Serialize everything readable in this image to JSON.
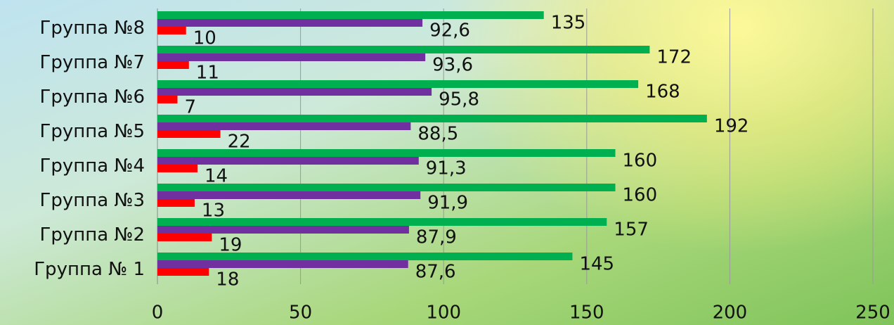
{
  "chart_data": {
    "type": "hbar",
    "categories": [
      "Группа № 1",
      "Группа №2",
      "Группа №3",
      "Группа №4",
      "Группа №5",
      "Группа №6",
      "Группа №7",
      "Группа №8"
    ],
    "series": [
      {
        "color": "#ff0000",
        "values": [
          18,
          19,
          13,
          14,
          22,
          7,
          11,
          10
        ]
      },
      {
        "color": "#7030a0",
        "values": [
          87.6,
          87.9,
          91.9,
          91.3,
          88.5,
          95.8,
          93.6,
          92.6
        ],
        "value_labels": [
          "87,6",
          "87,9",
          "91,9",
          "91,3",
          "88,5",
          "95,8",
          "93,6",
          "92,6"
        ]
      },
      {
        "color": "#00b050",
        "values": [
          145,
          157,
          160,
          160,
          192,
          168,
          172,
          135
        ]
      }
    ],
    "xlim": [
      0,
      250
    ],
    "xticks": [
      0,
      50,
      100,
      150,
      200,
      250
    ],
    "grid": true
  }
}
